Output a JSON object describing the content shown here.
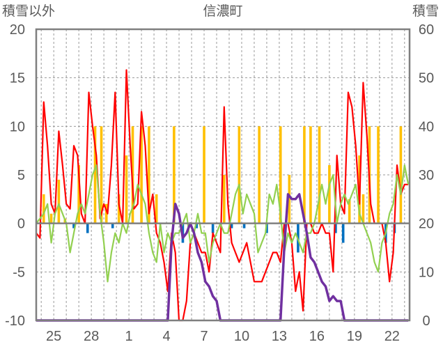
{
  "chart_data": {
    "type": "bar+line",
    "title": "信濃町",
    "ylabel_left": "積雪以外",
    "ylabel_right": "積雪",
    "ylim_left": [
      -10,
      20
    ],
    "ylim_right": [
      0,
      60
    ],
    "yticks_left": [
      "20",
      "15",
      "10",
      "5",
      "0",
      "-5",
      "-10"
    ],
    "yticks_right": [
      "60",
      "50",
      "40",
      "30",
      "20",
      "10",
      "0"
    ],
    "xticks": [
      "25",
      "28",
      "1",
      "4",
      "7",
      "10",
      "13",
      "16",
      "19",
      "22"
    ],
    "xtick_days": [
      2,
      5,
      8,
      11,
      14,
      17,
      20,
      23,
      26,
      29
    ],
    "xlim_days": [
      0.6,
      30.4
    ],
    "grid": "dashed",
    "colors": {
      "max_temp": "#ff0000",
      "min_temp": "#92d050",
      "precip_pos": "#ffc000",
      "precip_neg": "#0070c0",
      "snow_depth": "#7030a0",
      "frame": "#7f7f7f"
    },
    "series": [
      {
        "kind": "line",
        "color": "#ff0000",
        "axis": "left",
        "x": [
          0.6,
          0.9,
          1.2,
          1.5,
          1.8,
          2.1,
          2.4,
          2.7,
          3.0,
          3.3,
          3.6,
          3.9,
          4.2,
          4.5,
          4.8,
          5.1,
          5.4,
          5.7,
          6.0,
          6.3,
          6.6,
          6.9,
          7.2,
          7.5,
          7.8,
          8.1,
          8.4,
          8.7,
          9.0,
          9.3,
          9.6,
          9.9,
          10.2,
          10.5,
          10.8,
          11.1,
          11.4,
          11.7,
          12.0,
          12.3,
          12.6,
          12.9,
          13.2,
          13.5,
          13.8,
          14.1,
          14.4,
          14.7,
          15.0,
          15.3,
          15.6,
          15.9,
          16.2,
          16.5,
          16.8,
          17.1,
          17.4,
          17.7,
          18.0,
          18.3,
          18.6,
          18.9,
          19.2,
          19.5,
          19.8,
          20.1,
          20.4,
          20.7,
          21.0,
          21.3,
          21.6,
          21.9,
          22.2,
          22.5,
          22.8,
          23.1,
          23.4,
          23.7,
          24.0,
          24.3,
          24.6,
          24.9,
          25.2,
          25.5,
          25.8,
          26.1,
          26.4,
          26.7,
          27.0,
          27.3,
          27.6,
          27.9,
          28.2,
          28.5,
          28.8,
          29.1,
          29.4,
          29.7,
          30.0,
          30.3
        ],
        "y": [
          -1,
          -1.5,
          12.5,
          8,
          2,
          1,
          9.5,
          6,
          2,
          1.5,
          8,
          7,
          1,
          0,
          13.5,
          10,
          7,
          0.5,
          2,
          1,
          6,
          13.5,
          2,
          0,
          15.8,
          8,
          1.5,
          2,
          11.5,
          8,
          1,
          3,
          -1,
          -2,
          -4,
          -7,
          -1,
          -3,
          -10,
          -10,
          -8,
          -2,
          -1,
          -2,
          -3,
          -3,
          -5,
          -1,
          -2,
          -3,
          12,
          2,
          -2,
          -3,
          -4,
          -3,
          -2,
          -4,
          -6,
          -6,
          -6,
          -5,
          -4,
          -3,
          -3,
          -4,
          0,
          0,
          -2,
          -7,
          -5,
          -9,
          0,
          0,
          -1,
          -1,
          0,
          -1,
          -1,
          -5,
          7,
          2,
          1,
          13.5,
          12,
          8,
          2,
          14.5,
          9,
          2,
          0,
          0,
          0,
          -2,
          -6,
          -3,
          6,
          3,
          4,
          4
        ]
      },
      {
        "kind": "line",
        "color": "#92d050",
        "axis": "left",
        "x": [
          0.6,
          0.9,
          1.2,
          1.5,
          1.8,
          2.1,
          2.4,
          2.7,
          3.0,
          3.3,
          3.6,
          3.9,
          4.2,
          4.5,
          4.8,
          5.1,
          5.4,
          5.7,
          6.0,
          6.3,
          6.6,
          6.9,
          7.2,
          7.5,
          7.8,
          8.1,
          8.4,
          8.7,
          9.0,
          9.3,
          9.6,
          9.9,
          10.2,
          10.5,
          10.8,
          11.1,
          11.4,
          11.7,
          12.0,
          12.3,
          12.6,
          12.9,
          13.2,
          13.5,
          13.8,
          14.1,
          14.4,
          14.7,
          15.0,
          15.3,
          15.6,
          15.9,
          16.2,
          16.5,
          16.8,
          17.1,
          17.4,
          17.7,
          18.0,
          18.3,
          18.6,
          18.9,
          19.2,
          19.5,
          19.8,
          20.1,
          20.4,
          20.7,
          21.0,
          21.3,
          21.6,
          21.9,
          22.2,
          22.5,
          22.8,
          23.1,
          23.4,
          23.7,
          24.0,
          24.3,
          24.6,
          24.9,
          25.2,
          25.5,
          25.8,
          26.1,
          26.4,
          26.7,
          27.0,
          27.3,
          27.6,
          27.9,
          28.2,
          28.5,
          28.8,
          29.1,
          29.4,
          29.7,
          30.0,
          30.3
        ],
        "y": [
          0,
          0.5,
          1,
          2,
          -2,
          1,
          2,
          1,
          0,
          -3,
          -1,
          1,
          2,
          1,
          3,
          5,
          6,
          1,
          -2,
          -6,
          -3,
          -1,
          -2,
          0,
          -1,
          1,
          2,
          4,
          3,
          2,
          -1,
          -3,
          -4,
          0,
          -3,
          -1,
          -2,
          -1,
          -1,
          0,
          1,
          -2,
          -1,
          1,
          -1,
          -1,
          -4,
          -2,
          -1,
          0,
          -1,
          -1,
          1,
          3,
          4,
          1,
          3,
          2,
          1,
          -3,
          -2,
          -1,
          3,
          2,
          4,
          1,
          -3,
          -1,
          -2,
          -1,
          -2,
          -3,
          -1,
          -1,
          0,
          2,
          4,
          2,
          4,
          5,
          0,
          2,
          3,
          2,
          3,
          4,
          1,
          0,
          -1,
          -2,
          -4,
          -5,
          -2,
          -1,
          1,
          2,
          5,
          3,
          6,
          4
        ]
      },
      {
        "kind": "line",
        "color": "#7030a0",
        "axis": "right",
        "x": [
          0.6,
          11.1,
          11.4,
          11.7,
          12.0,
          12.3,
          12.6,
          12.9,
          13.2,
          13.5,
          13.8,
          14.1,
          14.4,
          14.7,
          15.0,
          15.3,
          20.1,
          20.4,
          20.7,
          21.0,
          21.3,
          21.6,
          21.9,
          22.2,
          22.5,
          22.8,
          23.1,
          23.4,
          23.7,
          24.0,
          24.3,
          24.6,
          24.9,
          25.2,
          30.3
        ],
        "y": [
          0,
          0,
          16,
          24,
          22,
          17,
          18,
          20,
          18,
          14,
          12,
          8,
          7,
          5,
          4,
          0,
          0,
          15,
          26,
          25,
          25,
          26,
          22,
          18,
          13,
          12,
          10,
          8,
          7,
          4,
          5,
          4,
          4,
          0,
          0
        ]
      },
      {
        "kind": "bar",
        "axis": "left",
        "x": [
          1.2,
          1.8,
          2.4,
          2.9,
          3.6,
          4.0,
          4.7,
          5.3,
          5.8,
          6.2,
          6.7,
          7.2,
          7.8,
          8.3,
          9.0,
          9.6,
          10.2,
          11.6,
          12.3,
          13.4,
          14.0,
          14.7,
          15.6,
          16.2,
          16.8,
          17.2,
          18.4,
          19.0,
          20.1,
          20.8,
          21.5,
          22.0,
          22.5,
          23.2,
          24.0,
          24.5,
          25.1,
          25.6,
          26.4,
          26.7,
          27.2,
          27.9,
          28.5,
          29.2,
          29.7
        ],
        "y": [
          3,
          1,
          4.5,
          0.5,
          -0.5,
          6,
          -1,
          10,
          10,
          2,
          -0.5,
          3,
          7,
          10,
          10,
          10,
          3,
          10,
          -2,
          -0.5,
          10,
          -1,
          5,
          -0.5,
          10,
          -0.5,
          10,
          -1,
          10,
          5,
          -3,
          10,
          10,
          10,
          6,
          -1,
          -2,
          2.5,
          7,
          3,
          10,
          10,
          -2,
          -1,
          10
        ]
      }
    ]
  }
}
